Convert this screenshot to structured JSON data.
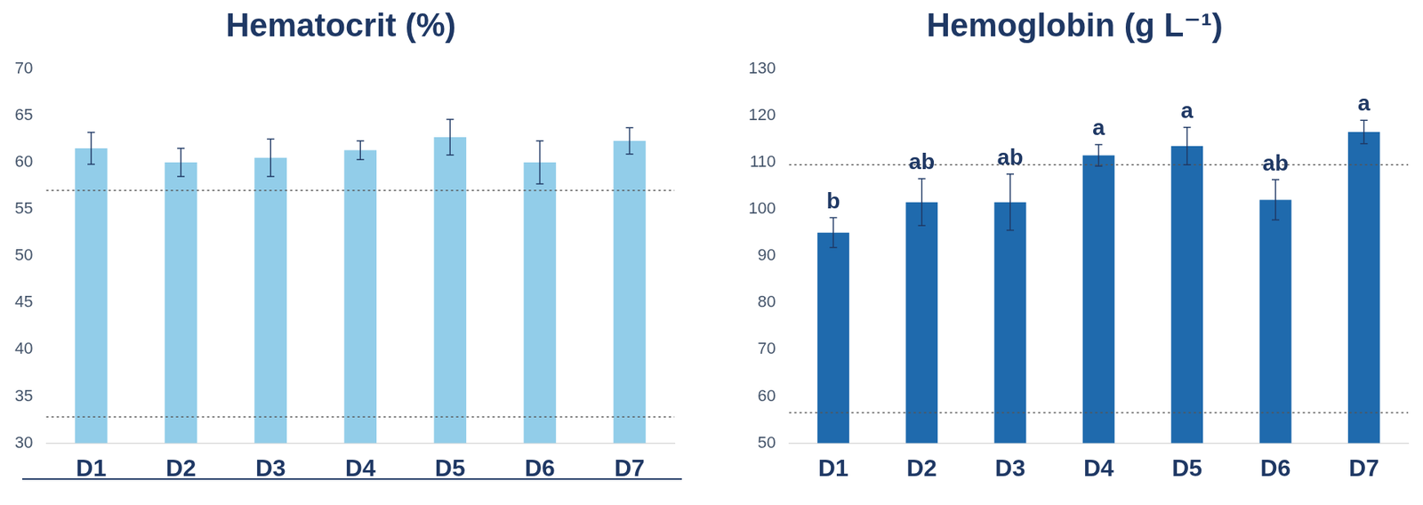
{
  "chart_data": [
    {
      "type": "bar",
      "title": "Hematocrit (%)",
      "categories": [
        "D1",
        "D2",
        "D3",
        "D4",
        "D5",
        "D6",
        "D7"
      ],
      "values": [
        61.5,
        60,
        60.5,
        61.3,
        62.7,
        60,
        62.3
      ],
      "errors": [
        1.7,
        1.5,
        2,
        1,
        1.9,
        2.3,
        1.4
      ],
      "reference_lines": [
        57,
        32.8
      ],
      "color": "#92cde9",
      "ylim": [
        30,
        70
      ],
      "yticks": [
        30,
        35,
        40,
        45,
        50,
        55,
        60,
        65,
        70
      ],
      "grid": false
    },
    {
      "type": "bar",
      "title": "Hemoglobin (g L⁻¹)",
      "categories": [
        "D1",
        "D2",
        "D3",
        "D4",
        "D5",
        "D6",
        "D7"
      ],
      "values": [
        95,
        101.5,
        101.5,
        111.5,
        113.5,
        102,
        116.5
      ],
      "errors": [
        3.2,
        5,
        6,
        2.3,
        4,
        4.3,
        2.5
      ],
      "letters": [
        "b",
        "ab",
        "ab",
        "a",
        "a",
        "ab",
        "a"
      ],
      "reference_lines": [
        109.5,
        56.5
      ],
      "color": "#1f6aad",
      "ylim": [
        50,
        130
      ],
      "yticks": [
        50,
        60,
        70,
        80,
        90,
        100,
        110,
        120,
        130
      ],
      "grid": false
    }
  ]
}
